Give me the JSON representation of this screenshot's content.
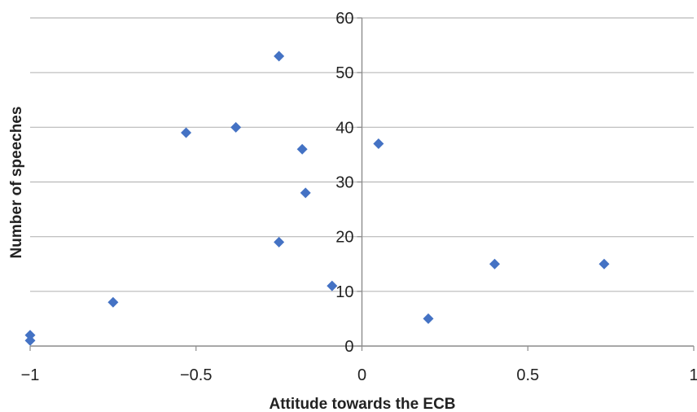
{
  "chart_data": {
    "type": "scatter",
    "title": "",
    "xlabel": "Attitude towards the ECB",
    "ylabel": "Number of speeches",
    "xlim": [
      -1,
      1
    ],
    "ylim": [
      0,
      60
    ],
    "x_ticks": [
      -1,
      -0.5,
      0,
      0.5,
      1
    ],
    "x_tick_labels": [
      "−1",
      "−0.5",
      "0",
      "0.5",
      "1"
    ],
    "y_ticks": [
      0,
      10,
      20,
      30,
      40,
      50,
      60
    ],
    "y_tick_labels": [
      "0",
      "10",
      "20",
      "30",
      "40",
      "50",
      "60"
    ],
    "grid": "horizontal",
    "y_axis_position": "x=0",
    "marker": "diamond",
    "series_color": "#4472C4",
    "grid_color": "#b8b8b8",
    "points": [
      {
        "x": -1.0,
        "y": 2
      },
      {
        "x": -1.0,
        "y": 1
      },
      {
        "x": -0.75,
        "y": 8
      },
      {
        "x": -0.53,
        "y": 39
      },
      {
        "x": -0.38,
        "y": 40
      },
      {
        "x": -0.25,
        "y": 53
      },
      {
        "x": -0.25,
        "y": 19
      },
      {
        "x": -0.18,
        "y": 36
      },
      {
        "x": -0.17,
        "y": 28
      },
      {
        "x": -0.09,
        "y": 11
      },
      {
        "x": 0.05,
        "y": 37
      },
      {
        "x": 0.2,
        "y": 5
      },
      {
        "x": 0.4,
        "y": 15
      },
      {
        "x": 0.73,
        "y": 15
      }
    ]
  }
}
